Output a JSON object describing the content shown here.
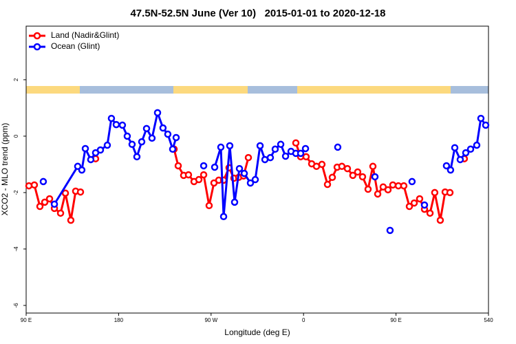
{
  "chart_data": {
    "type": "line",
    "title": "47.5N-52.5N June (Ver 10)   2015-01-01 to 2020-12-18",
    "xlabel": "Longitude (deg E)",
    "ylabel": "XCO2 - MLO trend (ppm)",
    "xlim": [
      90,
      540
    ],
    "ylim": [
      -6.27,
      3.9
    ],
    "xticks": [
      {
        "value": 90,
        "label": "90 E"
      },
      180,
      {
        "value": 270,
        "label": "90 W"
      },
      {
        "value": 360,
        "label": "0"
      },
      {
        "value": 450,
        "label": "90 E"
      },
      540
    ],
    "yticks": [
      2,
      0,
      -2,
      -4,
      -6
    ],
    "legend": "top-left",
    "series": [
      {
        "name": "Land (Nadir&Glint)",
        "color": "#ff0000",
        "x": [
          92.7,
          98.0,
          103.4,
          108.1,
          112.8,
          117.5,
          123.5,
          128.2,
          133.5,
          138.2,
          142.9,
          null,
          157.6,
          null,
          234.0,
          238.0,
          243.3,
          248.0,
          253.4,
          258.1,
          262.8,
          268.1,
          272.8,
          277.5,
          282.2,
          287.5,
          292.2,
          296.9,
          301.6,
          306.3,
          null,
          352.5,
          357.2,
          362.5,
          367.9,
          372.6,
          377.9,
          383.3,
          388.0,
          392.7,
          397.3,
          402.7,
          408.0,
          412.7,
          417.4,
          422.8,
          427.5,
          432.2,
          437.5,
          442.2,
          446.9,
          452.3,
          457.6,
          463.0,
          467.7,
          473.0,
          477.7,
          483.1,
          487.7,
          493.1,
          497.8,
          502.5,
          null,
          516.5
        ],
        "values": [
          -1.76,
          -1.73,
          -2.49,
          -2.34,
          -2.22,
          -2.56,
          -2.73,
          -2.02,
          -2.98,
          -1.95,
          -1.98,
          null,
          -0.8,
          null,
          -0.46,
          -1.05,
          -1.39,
          -1.37,
          -1.61,
          -1.54,
          -1.37,
          -2.46,
          -1.66,
          -1.56,
          -1.56,
          -1.12,
          -1.49,
          -1.46,
          -1.41,
          -0.76,
          null,
          -0.24,
          -0.73,
          -0.73,
          -0.98,
          -1.07,
          -1.0,
          -1.71,
          -1.46,
          -1.1,
          -1.07,
          -1.15,
          -1.39,
          -1.27,
          -1.44,
          -1.88,
          -1.07,
          -2.05,
          -1.8,
          -1.9,
          -1.73,
          -1.76,
          -1.76,
          -2.49,
          -2.37,
          -2.22,
          -2.59,
          -2.73,
          -2.0,
          -2.98,
          -1.98,
          -2.0,
          null,
          -0.8
        ]
      },
      {
        "name": "Ocean (Glint)",
        "color": "#0000ff",
        "x": [
          106.7,
          null,
          117.5,
          140.2,
          144.2,
          147.6,
          152.9,
          157.6,
          162.3,
          169.0,
          173.0,
          177.7,
          183.7,
          188.4,
          193.1,
          197.8,
          202.5,
          207.2,
          212.5,
          217.9,
          223.2,
          227.9,
          232.6,
          236.0,
          null,
          262.8,
          null,
          273.5,
          279.5,
          282.2,
          288.2,
          292.9,
          297.6,
          302.3,
          308.3,
          313.0,
          317.7,
          322.4,
          327.7,
          332.4,
          337.8,
          342.5,
          347.8,
          352.5,
          357.2,
          361.9,
          null,
          393.3,
          null,
          429.5,
          null,
          444.2,
          null,
          465.6,
          null,
          477.7,
          null,
          499.1,
          503.1,
          507.2,
          512.5,
          517.9,
          522.6,
          528.6,
          532.6,
          537.3
        ],
        "values": [
          -1.61,
          null,
          -2.41,
          -1.07,
          -1.2,
          -0.44,
          -0.83,
          -0.59,
          -0.49,
          -0.32,
          0.63,
          0.41,
          0.39,
          0,
          -0.29,
          -0.73,
          -0.2,
          0.27,
          -0.07,
          0.83,
          0.29,
          0.07,
          -0.46,
          -0.05,
          null,
          -1.05,
          null,
          -1.1,
          -0.39,
          -2.85,
          -0.34,
          -2.34,
          -1.15,
          -1.32,
          -1.66,
          -1.54,
          -0.34,
          -0.83,
          -0.76,
          -0.46,
          -0.29,
          -0.71,
          -0.54,
          -0.61,
          -0.61,
          -0.44,
          null,
          -0.39,
          null,
          -1.44,
          null,
          -3.34,
          null,
          -1.61,
          null,
          -2.44,
          null,
          -1.05,
          -1.2,
          -0.41,
          -0.83,
          -0.59,
          -0.46,
          -0.32,
          0.63,
          0.39
        ]
      }
    ]
  }
}
